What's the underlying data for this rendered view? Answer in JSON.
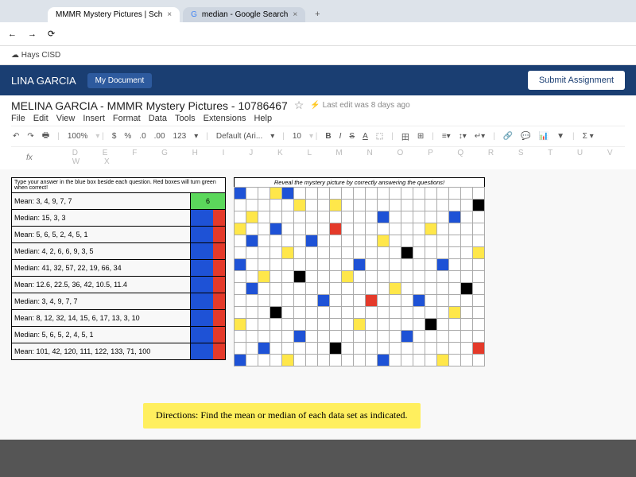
{
  "tabs": [
    {
      "label": "MMMR Mystery Pictures | Sch"
    },
    {
      "label": "median - Google Search"
    }
  ],
  "bookmarks": [
    "Hays CISD"
  ],
  "header": {
    "user_name": "LINA GARCIA",
    "my_doc": "My Document",
    "submit": "Submit Assignment"
  },
  "doc": {
    "title": "MELINA GARCIA - MMMR Mystery Pictures - 10786467",
    "status": "Last edit was 8 days ago",
    "menus": [
      "File",
      "Edit",
      "View",
      "Insert",
      "Format",
      "Data",
      "Tools",
      "Extensions",
      "Help"
    ],
    "toolbar": {
      "zoom": "100%",
      "currency": "$",
      "percent": "%",
      "dec1": ".0",
      "dec2": ".00",
      "fmt": "123",
      "font": "Default (Ari...",
      "size": "10",
      "letters": "D E F G H I J K L M N O P Q R S T U V W X"
    },
    "cell_ref": "fx"
  },
  "table": {
    "header_q": "Type your answer in the blue box beside each question. Red boxes will turn green when correct!",
    "rows": [
      {
        "q": "Mean: 3, 4, 9, 7, 7",
        "ans": "6",
        "state": "green"
      },
      {
        "q": "Median: 15, 3, 3",
        "ans": "",
        "state": "redblue"
      },
      {
        "q": "Mean: 5, 6, 5, 2, 4, 5, 1",
        "ans": "",
        "state": "redblue"
      },
      {
        "q": "Median: 4, 2, 6, 6, 9, 3, 5",
        "ans": "",
        "state": "redblue"
      },
      {
        "q": "Median: 41, 32, 57, 22, 19, 66, 34",
        "ans": "",
        "state": "redblue"
      },
      {
        "q": "Mean: 12.6, 22.5, 36, 42, 10.5, 11.4",
        "ans": "",
        "state": "redblue"
      },
      {
        "q": "Median: 3, 4, 9, 7, 7",
        "ans": "",
        "state": "redblue"
      },
      {
        "q": "Mean: 8, 12, 32, 14, 15, 6, 17, 13, 3, 10",
        "ans": "",
        "state": "redblue"
      },
      {
        "q": "Median: 5, 6, 5, 2, 4, 5, 1",
        "ans": "",
        "state": "redblue"
      },
      {
        "q": "Mean: 101, 42, 120, 111, 122, 133, 71, 100",
        "ans": "",
        "state": "redblue"
      }
    ]
  },
  "mystery": {
    "caption": "Reveal the mystery picture by correctly answering the questions!",
    "cols": 21,
    "rows_count": 15,
    "cells": {
      "0-0": "b",
      "0-3": "y",
      "0-4": "b",
      "1-5": "y",
      "1-8": "y",
      "1-20": "k",
      "2-1": "y",
      "2-12": "b",
      "2-18": "b",
      "3-0": "y",
      "3-3": "b",
      "3-8": "r",
      "3-16": "y",
      "4-1": "b",
      "4-6": "b",
      "4-12": "y",
      "5-4": "y",
      "5-14": "k",
      "5-20": "y",
      "6-0": "b",
      "6-10": "b",
      "6-17": "b",
      "7-2": "y",
      "7-5": "k",
      "7-9": "y",
      "8-1": "b",
      "8-13": "y",
      "8-19": "k",
      "9-7": "b",
      "9-11": "r",
      "9-15": "b",
      "10-3": "k",
      "10-18": "y",
      "11-0": "y",
      "11-10": "y",
      "11-16": "k",
      "12-5": "b",
      "12-14": "b",
      "13-2": "b",
      "13-8": "k",
      "13-20": "r",
      "14-0": "b",
      "14-4": "y",
      "14-12": "b",
      "14-17": "y"
    }
  },
  "directions": "Directions: Find the mean or median of each data set as indicated."
}
